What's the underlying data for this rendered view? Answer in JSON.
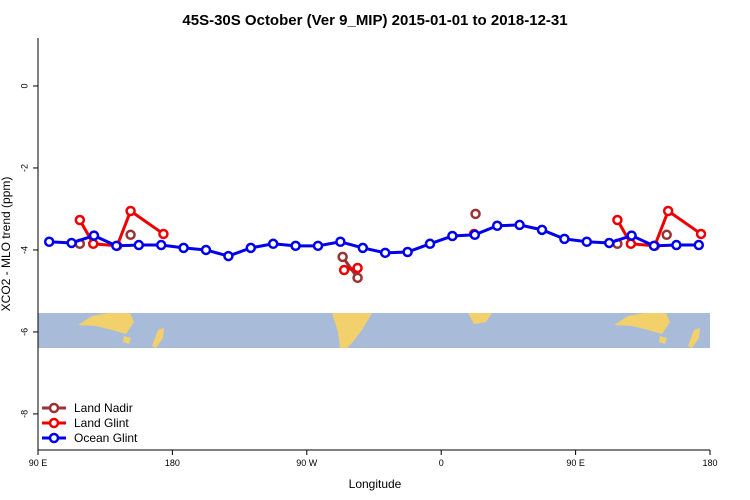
{
  "chart_data": {
    "type": "line",
    "title": "45S-30S October (Ver 9_MIP)   2015-01-01 to 2018-12-31",
    "xlabel": "Longitude",
    "ylabel": "XCO2 - MLO trend (ppm)",
    "xlim": [
      90,
      540
    ],
    "ylim": [
      -8.88,
      1.17
    ],
    "xticks": [
      {
        "value": 90,
        "label": "90 E"
      },
      {
        "value": 180,
        "label": "180"
      },
      {
        "value": 270,
        "label": "90 W"
      },
      {
        "value": 360,
        "label": "0"
      },
      {
        "value": 450,
        "label": "90 E"
      },
      {
        "value": 540,
        "label": "180"
      }
    ],
    "yticks": [
      0,
      -2,
      -4,
      -6,
      -8
    ],
    "legend": "bottom-left",
    "series": [
      {
        "name": "Land Nadir",
        "color": "#993333",
        "x": [
          118,
          null,
          152,
          null,
          294,
          304,
          null,
          383,
          null,
          478,
          null,
          511
        ],
        "values": [
          -3.85,
          null,
          -3.63,
          null,
          -4.17,
          -4.68,
          null,
          -3.12,
          null,
          -3.85,
          null,
          -3.63
        ]
      },
      {
        "name": "Land Glint",
        "color": "#ee0000",
        "x": [
          118,
          127,
          143,
          152,
          174,
          null,
          295,
          304,
          null,
          382,
          null,
          478,
          487,
          503,
          512,
          534
        ],
        "values": [
          -3.27,
          -3.85,
          -3.9,
          -3.05,
          -3.61,
          null,
          -4.49,
          -4.44,
          null,
          -3.61,
          null,
          -3.27,
          -3.85,
          -3.9,
          -3.05,
          -3.61
        ]
      },
      {
        "name": "Ocean Glint",
        "color": "#0000ee",
        "x": [
          97.5,
          112.5,
          127.5,
          142.5,
          157.5,
          172.5,
          187.5,
          202.5,
          217.5,
          232.5,
          247.5,
          262.5,
          277.5,
          292.5,
          307.5,
          322.5,
          337.5,
          352.5,
          367.5,
          382.5,
          397.5,
          412.5,
          427.5,
          442.5,
          457.5,
          472.5,
          487.5,
          502.5,
          517.5,
          532.5
        ],
        "values": [
          -3.8,
          -3.83,
          -3.65,
          -3.9,
          -3.88,
          -3.88,
          -3.95,
          -4.0,
          -4.15,
          -3.95,
          -3.85,
          -3.9,
          -3.9,
          -3.8,
          -3.95,
          -4.07,
          -4.05,
          -3.85,
          -3.66,
          -3.63,
          -3.41,
          -3.39,
          -3.51,
          -3.73,
          -3.8,
          -3.83,
          -3.65,
          -3.9,
          -3.88,
          -3.88
        ]
      }
    ]
  }
}
